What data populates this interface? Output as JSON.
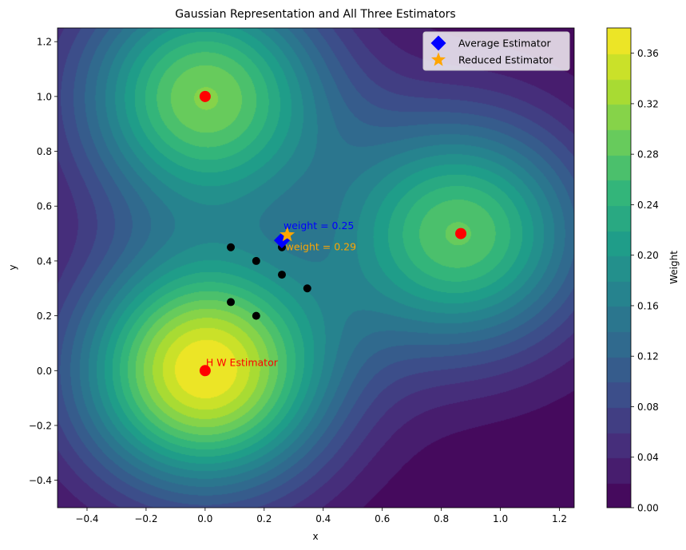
{
  "chart_data": {
    "type": "contour",
    "title": "Gaussian Representation and All Three Estimators",
    "xlabel": "x",
    "ylabel": "y",
    "xlim": [
      -0.5,
      1.25
    ],
    "ylim": [
      -0.5,
      1.25
    ],
    "xticks": [
      "−0.4",
      "−0.2",
      "0.0",
      "0.2",
      "0.4",
      "0.6",
      "0.8",
      "1.0",
      "1.2"
    ],
    "yticks": [
      "−0.4",
      "−0.2",
      "0.0",
      "0.2",
      "0.4",
      "0.6",
      "0.8",
      "1.0",
      "1.2"
    ],
    "grid": false,
    "colormap": "viridis",
    "colorbar": {
      "label": "Weight",
      "range": [
        0.0,
        0.38
      ],
      "ticks": [
        "0.00",
        "0.04",
        "0.08",
        "0.12",
        "0.16",
        "0.20",
        "0.24",
        "0.28",
        "0.32",
        "0.36"
      ],
      "levels": 19
    },
    "gaussian_centers": [
      {
        "x": 0.0,
        "y": 0.0,
        "weight": 0.38
      },
      {
        "x": 0.0,
        "y": 1.0,
        "weight": 0.3
      },
      {
        "x": 0.866,
        "y": 0.5,
        "weight": 0.28
      }
    ],
    "red_points": [
      {
        "x": 0.0,
        "y": 1.0
      },
      {
        "x": 0.0,
        "y": 0.0
      },
      {
        "x": 0.866,
        "y": 0.5
      }
    ],
    "black_points": [
      {
        "x": 0.087,
        "y": 0.45
      },
      {
        "x": 0.173,
        "y": 0.4
      },
      {
        "x": 0.26,
        "y": 0.45
      },
      {
        "x": 0.26,
        "y": 0.35
      },
      {
        "x": 0.346,
        "y": 0.3
      },
      {
        "x": 0.087,
        "y": 0.25
      },
      {
        "x": 0.173,
        "y": 0.2
      }
    ],
    "average_estimator": {
      "x": 0.26,
      "y": 0.475,
      "label": "weight = 0.25"
    },
    "reduced_estimator": {
      "x": 0.278,
      "y": 0.495,
      "label": "weight = 0.29"
    },
    "hw_estimator": {
      "x": 0.0,
      "y": 0.0,
      "label": "H W Estimator"
    },
    "legend": {
      "position": "upper right",
      "entries": [
        {
          "label": "Average Estimator",
          "marker": "diamond",
          "color": "#0000ff"
        },
        {
          "label": "Reduced Estimator",
          "marker": "star",
          "color": "#ffa500"
        }
      ]
    },
    "colors": {
      "red_point": "#ff0000",
      "black_point": "#000000",
      "average_label": "#0000ff",
      "reduced_label": "#ffa500",
      "hw_label": "#ff0000"
    }
  }
}
